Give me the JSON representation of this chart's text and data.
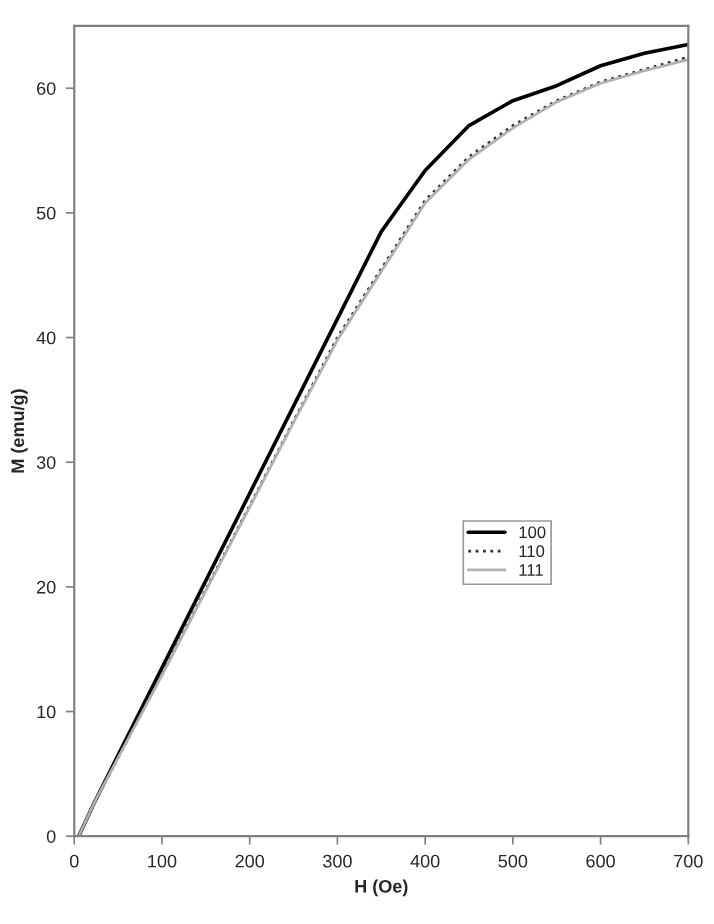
{
  "chart_data": {
    "type": "line",
    "xlabel": "H (Oe)",
    "ylabel": "M (emu/g)",
    "x": [
      5,
      25,
      50,
      100,
      150,
      200,
      250,
      300,
      350,
      400,
      450,
      500,
      550,
      600,
      650,
      700
    ],
    "series": [
      {
        "name": "100",
        "color": "#000000",
        "line_style": "solid",
        "values": [
          0,
          3,
          6.5,
          13.5,
          20.5,
          27.5,
          34.5,
          41.5,
          48.5,
          53.4,
          57,
          59,
          60.2,
          61.8,
          62.8,
          63.5
        ]
      },
      {
        "name": "110",
        "color": "#333333",
        "line_style": "dotted",
        "values": [
          0,
          3,
          6.3,
          13,
          19.8,
          26.5,
          33.3,
          40,
          45.5,
          51,
          54.5,
          57,
          59,
          60.5,
          61.5,
          62.5
        ]
      },
      {
        "name": "111",
        "color": "#b0b0b0",
        "line_style": "solid",
        "values": [
          0,
          3,
          6.3,
          12.9,
          19.7,
          26.4,
          33.2,
          39.8,
          45.3,
          50.8,
          54.3,
          56.8,
          58.9,
          60.4,
          61.4,
          62.3
        ]
      }
    ],
    "xlim": [
      0,
      700
    ],
    "ylim": [
      0,
      65
    ],
    "xticks": [
      0,
      100,
      200,
      300,
      400,
      500,
      600,
      700
    ],
    "yticks": [
      0,
      10,
      20,
      30,
      40,
      50,
      60
    ],
    "grid": false,
    "legend": "right"
  }
}
